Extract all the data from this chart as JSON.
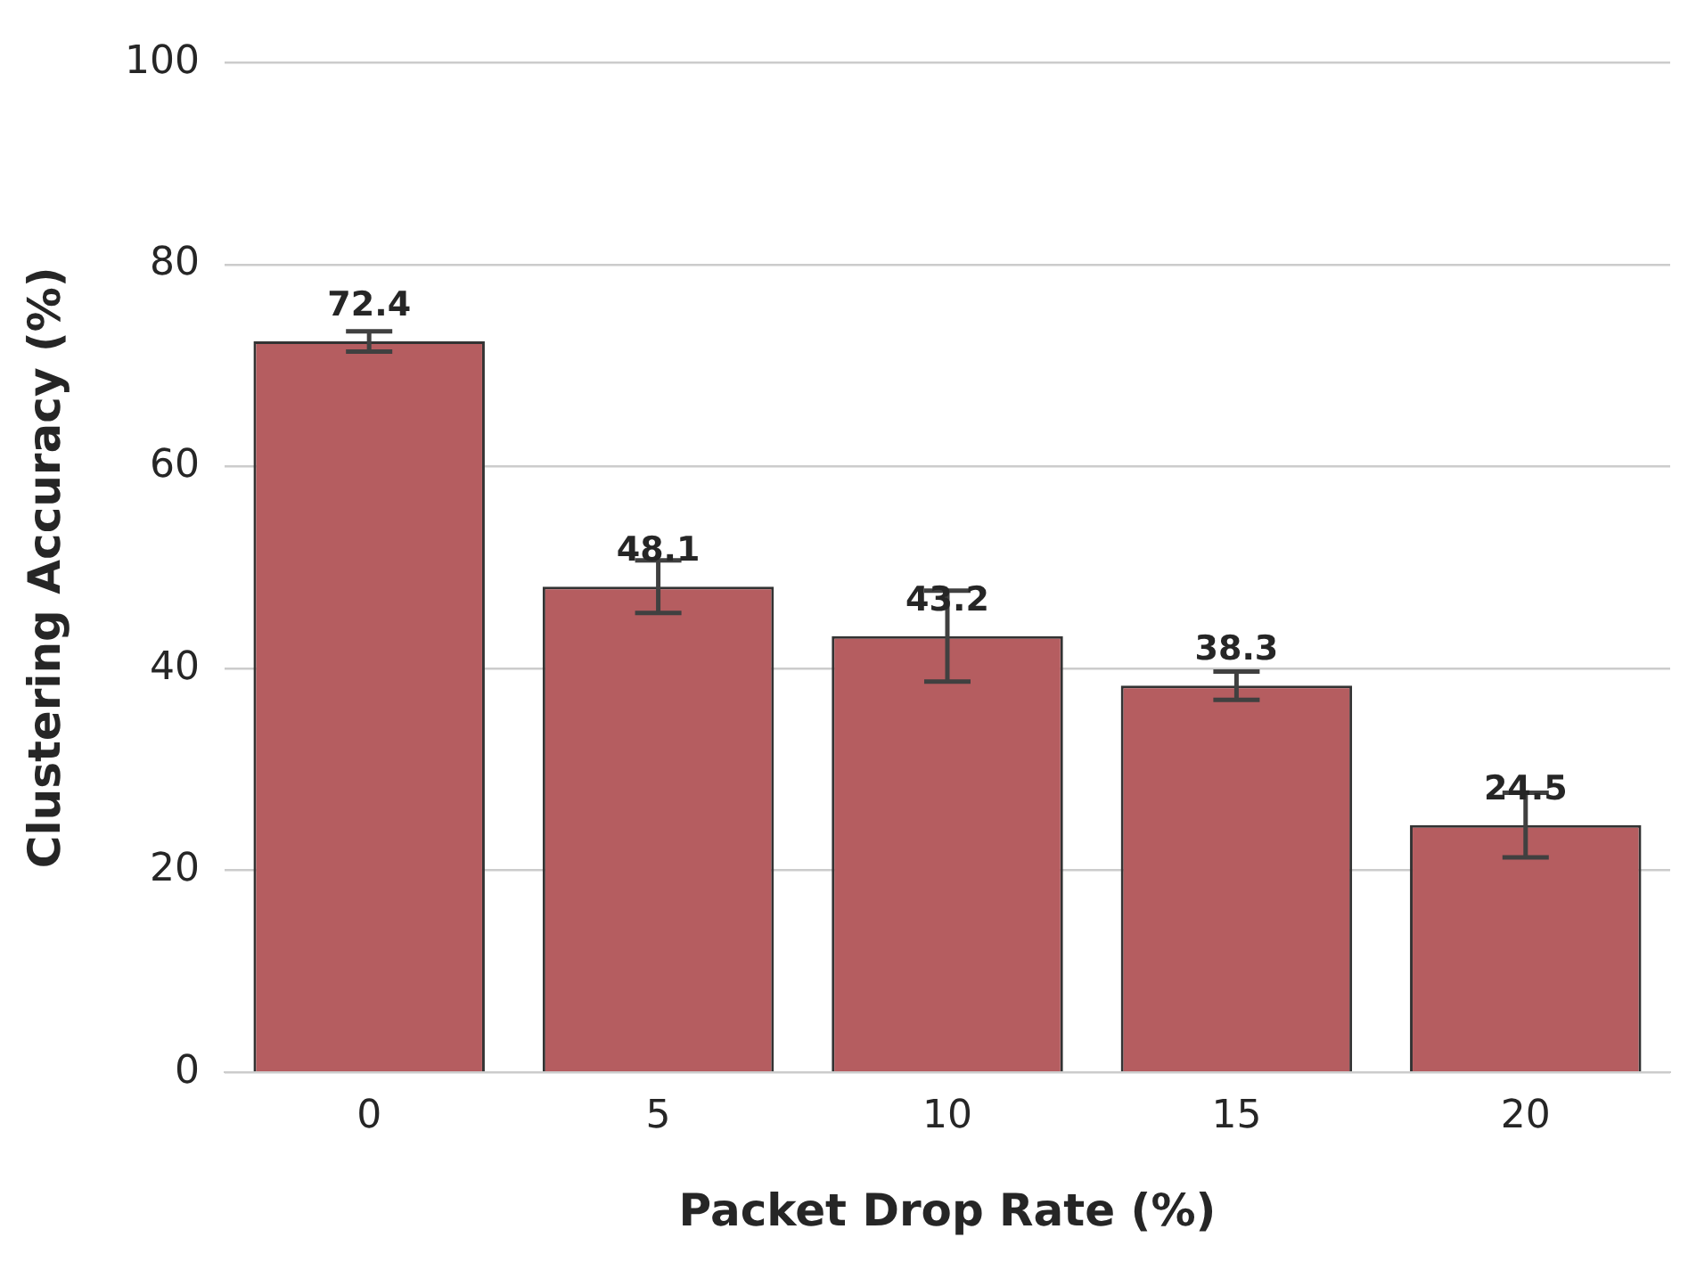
{
  "chart_data": {
    "type": "bar",
    "xlabel": "Packet Drop Rate (%)",
    "ylabel": "Clustering Accuracy (%)",
    "categories": [
      "0",
      "5",
      "10",
      "15",
      "20"
    ],
    "values": [
      72.4,
      48.1,
      43.2,
      38.3,
      24.5
    ],
    "errors": [
      1.0,
      2.6,
      4.5,
      1.4,
      3.2
    ],
    "color": "#b55d60",
    "ylim": [
      0,
      100
    ],
    "yticks": [
      0,
      20,
      40,
      60,
      80,
      100
    ],
    "grid": "y",
    "data_labels": true,
    "legend": false
  }
}
